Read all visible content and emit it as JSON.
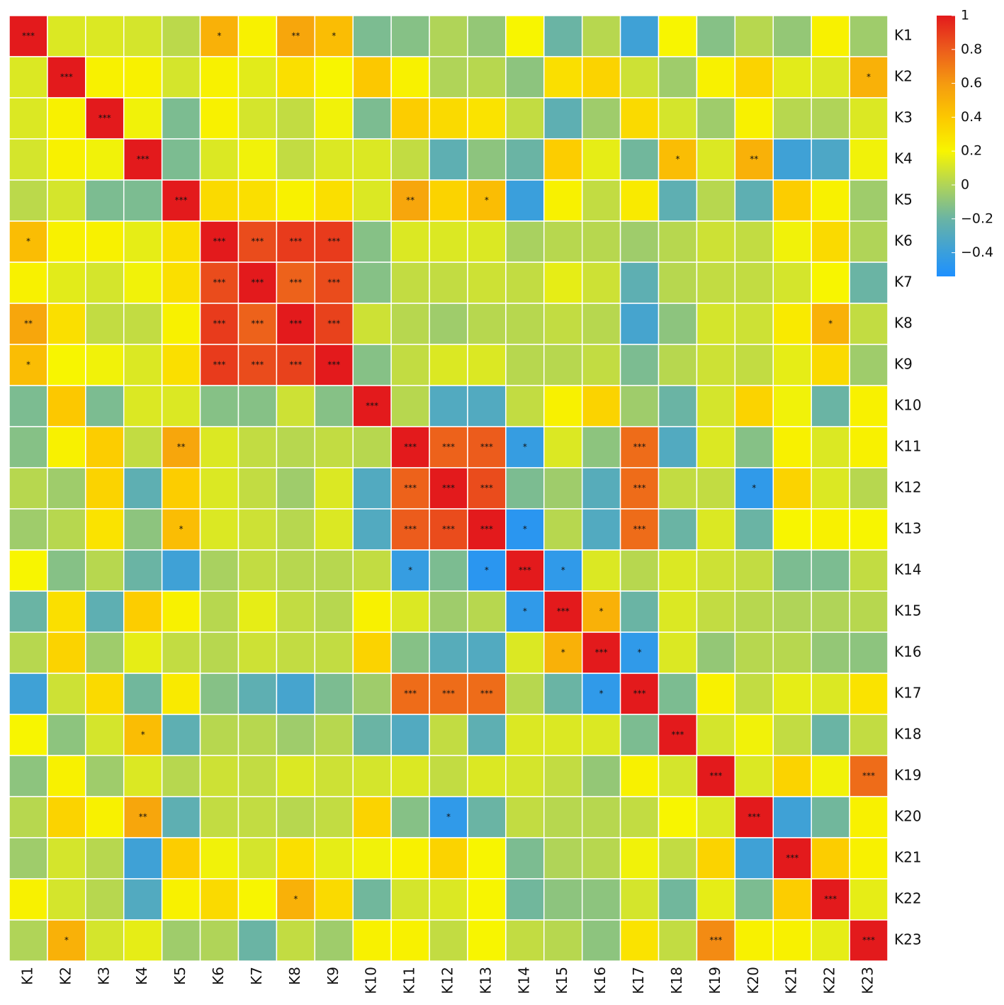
{
  "chart_data": {
    "type": "heatmap",
    "categories": [
      "K1",
      "K2",
      "K3",
      "K4",
      "K5",
      "K6",
      "K7",
      "K8",
      "K9",
      "K10",
      "K11",
      "K12",
      "K13",
      "K14",
      "K15",
      "K16",
      "K17",
      "K18",
      "K19",
      "K20",
      "K21",
      "K22",
      "K23"
    ],
    "values": [
      [
        1,
        0.12,
        0.12,
        0.1,
        0.03,
        0.5,
        0.22,
        0.55,
        0.45,
        -0.15,
        -0.12,
        0,
        -0.08,
        0.2,
        -0.2,
        0.02,
        -0.38,
        0.2,
        -0.12,
        0.02,
        -0.08,
        0.22,
        -0.05
      ],
      [
        0.12,
        1,
        0.22,
        0.22,
        0.1,
        0.22,
        0.14,
        0.3,
        0.2,
        0.4,
        0.22,
        0,
        0.02,
        -0.1,
        0.3,
        0.35,
        0.08,
        -0.05,
        0.22,
        0.35,
        0.14,
        0.12,
        0.5
      ],
      [
        0.12,
        0.22,
        1,
        0.18,
        -0.15,
        0.22,
        0.1,
        0.05,
        0.18,
        -0.15,
        0.38,
        0.32,
        0.28,
        0.05,
        -0.25,
        -0.05,
        0.32,
        0.1,
        -0.05,
        0.22,
        0.02,
        0,
        0.12
      ],
      [
        0.1,
        0.22,
        0.18,
        1,
        -0.15,
        0.12,
        0.18,
        0.05,
        0.12,
        0.12,
        0.05,
        -0.25,
        -0.1,
        -0.2,
        0.38,
        0.15,
        -0.18,
        0.45,
        0.12,
        0.5,
        -0.38,
        -0.32,
        0.18
      ],
      [
        0.03,
        0.1,
        -0.15,
        -0.15,
        1,
        0.32,
        0.3,
        0.22,
        0.3,
        0.12,
        0.55,
        0.35,
        0.45,
        -0.4,
        0.22,
        0.05,
        0.25,
        -0.25,
        0.02,
        -0.25,
        0.38,
        0.22,
        -0.05
      ],
      [
        0.45,
        0.22,
        0.22,
        0.15,
        0.3,
        1,
        0.85,
        0.9,
        0.9,
        -0.12,
        0.12,
        0.12,
        0.12,
        -0.02,
        0.02,
        0.02,
        -0.05,
        0.02,
        0.08,
        0.05,
        0.18,
        0.32,
        0
      ],
      [
        0.22,
        0.14,
        0.1,
        0.18,
        0.3,
        0.85,
        1,
        0.78,
        0.85,
        -0.12,
        0.05,
        0.05,
        0.08,
        0.05,
        0.15,
        0.08,
        -0.25,
        0.02,
        0.05,
        0.05,
        0.1,
        0.2,
        -0.2
      ],
      [
        0.55,
        0.3,
        0.05,
        0.05,
        0.22,
        0.9,
        0.78,
        1,
        0.88,
        0.08,
        0.02,
        -0.05,
        0.02,
        0.02,
        0.05,
        0.02,
        -0.35,
        -0.1,
        0.1,
        0.08,
        0.25,
        0.5,
        0.05
      ],
      [
        0.45,
        0.2,
        0.18,
        0.12,
        0.3,
        0.9,
        0.85,
        0.88,
        1,
        -0.12,
        0.05,
        0.12,
        0.12,
        0.02,
        0.02,
        0.05,
        -0.15,
        0.02,
        0.08,
        0.05,
        0.15,
        0.32,
        -0.05
      ],
      [
        -0.15,
        0.4,
        -0.15,
        0.12,
        0.12,
        -0.12,
        -0.12,
        0.08,
        -0.12,
        1,
        0.02,
        -0.3,
        -0.3,
        0.05,
        0.22,
        0.35,
        -0.05,
        -0.2,
        0.1,
        0.35,
        0.18,
        -0.2,
        0.22
      ],
      [
        -0.12,
        0.22,
        0.38,
        0.05,
        0.55,
        0.12,
        0.05,
        0.02,
        0.05,
        0.02,
        1,
        0.78,
        0.8,
        -0.42,
        0.12,
        -0.1,
        0.75,
        -0.3,
        0.12,
        -0.12,
        0.22,
        0.12,
        0.22
      ],
      [
        0.02,
        -0.05,
        0.35,
        -0.25,
        0.38,
        0.12,
        0.05,
        -0.05,
        0.12,
        -0.3,
        0.78,
        1,
        0.85,
        -0.15,
        -0.05,
        -0.28,
        0.75,
        0.05,
        0.05,
        -0.45,
        0.35,
        0.12,
        0.02
      ],
      [
        -0.05,
        0.02,
        0.28,
        -0.1,
        0.45,
        0.12,
        0.08,
        0.02,
        0.12,
        -0.3,
        0.8,
        0.85,
        1,
        -0.48,
        0.02,
        -0.3,
        0.75,
        -0.2,
        0.12,
        -0.2,
        0.2,
        0.22,
        0.2
      ],
      [
        0.2,
        -0.12,
        0.02,
        -0.2,
        -0.38,
        -0.02,
        0.05,
        0.02,
        0.02,
        0.05,
        -0.42,
        -0.15,
        -0.48,
        1,
        -0.45,
        0.12,
        0.02,
        0.12,
        0.08,
        0.05,
        -0.15,
        -0.15,
        0.05
      ],
      [
        -0.2,
        0.3,
        -0.25,
        0.38,
        0.22,
        0.02,
        0.15,
        0.05,
        0.02,
        0.22,
        0.12,
        -0.05,
        0.02,
        -0.45,
        1,
        0.5,
        -0.2,
        0.12,
        0.05,
        0.02,
        0,
        0,
        0.02
      ],
      [
        0.02,
        0.35,
        -0.05,
        0.15,
        0.05,
        0.02,
        0.08,
        0.05,
        0.05,
        0.35,
        -0.12,
        -0.28,
        -0.3,
        0.12,
        0.5,
        1,
        -0.45,
        0.12,
        -0.08,
        0.02,
        0.02,
        -0.08,
        -0.1
      ],
      [
        -0.38,
        0.08,
        0.32,
        -0.18,
        0.25,
        -0.12,
        -0.25,
        -0.35,
        -0.15,
        -0.05,
        0.75,
        0.75,
        0.75,
        0.02,
        -0.2,
        -0.45,
        1,
        -0.15,
        0.22,
        0.05,
        0.15,
        0.12,
        0.28
      ],
      [
        0.2,
        -0.1,
        0.1,
        0.45,
        -0.25,
        0.02,
        0.02,
        -0.05,
        0.02,
        -0.2,
        -0.3,
        0.05,
        -0.25,
        0.12,
        0.12,
        0.12,
        -0.15,
        1,
        0.1,
        0.18,
        0.05,
        -0.2,
        0.05
      ],
      [
        -0.1,
        0.22,
        -0.05,
        0.12,
        0.02,
        0.08,
        0.05,
        0.12,
        0.08,
        0.1,
        0.12,
        0.05,
        0.12,
        0.1,
        0.05,
        -0.08,
        0.22,
        0.1,
        1,
        0.12,
        0.35,
        0.18,
        0.75
      ],
      [
        0.02,
        0.35,
        0.22,
        0.55,
        -0.25,
        0.05,
        0.05,
        0.02,
        0.05,
        0.35,
        -0.12,
        -0.45,
        -0.2,
        0.05,
        0.02,
        0.02,
        0.05,
        0.2,
        0.12,
        1,
        -0.38,
        -0.18,
        0.22
      ],
      [
        -0.05,
        0.1,
        0.02,
        -0.38,
        0.38,
        0.18,
        0.1,
        0.3,
        0.15,
        0.18,
        0.22,
        0.35,
        0.2,
        -0.15,
        0,
        0.02,
        0.18,
        0.05,
        0.35,
        -0.38,
        1,
        0.38,
        0.22
      ],
      [
        0.22,
        0.1,
        0.02,
        -0.3,
        0.22,
        0.32,
        0.2,
        0.5,
        0.32,
        -0.18,
        0.1,
        0.12,
        0.2,
        -0.18,
        -0.1,
        -0.1,
        0.1,
        -0.18,
        0.15,
        -0.15,
        0.38,
        1,
        0.15
      ],
      [
        0,
        0.5,
        0.1,
        0.15,
        -0.05,
        0,
        -0.2,
        0.05,
        -0.05,
        0.22,
        0.22,
        0.05,
        0.2,
        0.05,
        0.02,
        -0.1,
        0.28,
        0.05,
        0.65,
        0.22,
        0.22,
        0.15,
        1
      ]
    ],
    "annotations": [
      [
        "***",
        null,
        null,
        null,
        null,
        "*",
        null,
        "**",
        "*",
        null,
        null,
        null,
        null,
        null,
        null,
        null,
        null,
        null,
        null,
        null,
        null,
        null,
        null
      ],
      [
        null,
        "***",
        null,
        null,
        null,
        null,
        null,
        null,
        null,
        null,
        null,
        null,
        null,
        null,
        null,
        null,
        null,
        null,
        null,
        null,
        null,
        null,
        "*"
      ],
      [
        null,
        null,
        "***",
        null,
        null,
        null,
        null,
        null,
        null,
        null,
        null,
        null,
        null,
        null,
        null,
        null,
        null,
        null,
        null,
        null,
        null,
        null,
        null
      ],
      [
        null,
        null,
        null,
        "***",
        null,
        null,
        null,
        null,
        null,
        null,
        null,
        null,
        null,
        null,
        null,
        null,
        null,
        "*",
        null,
        "**",
        null,
        null,
        null
      ],
      [
        null,
        null,
        null,
        null,
        "***",
        null,
        null,
        null,
        null,
        null,
        "**",
        null,
        "*",
        null,
        null,
        null,
        null,
        null,
        null,
        null,
        null,
        null,
        null
      ],
      [
        "*",
        null,
        null,
        null,
        null,
        "***",
        "***",
        "***",
        "***",
        null,
        null,
        null,
        null,
        null,
        null,
        null,
        null,
        null,
        null,
        null,
        null,
        null,
        null
      ],
      [
        null,
        null,
        null,
        null,
        null,
        "***",
        "***",
        "***",
        "***",
        null,
        null,
        null,
        null,
        null,
        null,
        null,
        null,
        null,
        null,
        null,
        null,
        null,
        null
      ],
      [
        "**",
        null,
        null,
        null,
        null,
        "***",
        "***",
        "***",
        "***",
        null,
        null,
        null,
        null,
        null,
        null,
        null,
        null,
        null,
        null,
        null,
        null,
        "*",
        null
      ],
      [
        "*",
        null,
        null,
        null,
        null,
        "***",
        "***",
        "***",
        "***",
        null,
        null,
        null,
        null,
        null,
        null,
        null,
        null,
        null,
        null,
        null,
        null,
        null,
        null
      ],
      [
        null,
        null,
        null,
        null,
        null,
        null,
        null,
        null,
        null,
        "***",
        null,
        null,
        null,
        null,
        null,
        null,
        null,
        null,
        null,
        null,
        null,
        null,
        null
      ],
      [
        null,
        null,
        null,
        null,
        "**",
        null,
        null,
        null,
        null,
        null,
        "***",
        "***",
        "***",
        "*",
        null,
        null,
        "***",
        null,
        null,
        null,
        null,
        null,
        null
      ],
      [
        null,
        null,
        null,
        null,
        null,
        null,
        null,
        null,
        null,
        null,
        "***",
        "***",
        "***",
        null,
        null,
        null,
        "***",
        null,
        null,
        "*",
        null,
        null,
        null
      ],
      [
        null,
        null,
        null,
        null,
        "*",
        null,
        null,
        null,
        null,
        null,
        "***",
        "***",
        "***",
        "*",
        null,
        null,
        "***",
        null,
        null,
        null,
        null,
        null,
        null
      ],
      [
        null,
        null,
        null,
        null,
        null,
        null,
        null,
        null,
        null,
        null,
        "*",
        null,
        "*",
        "***",
        "*",
        null,
        null,
        null,
        null,
        null,
        null,
        null,
        null
      ],
      [
        null,
        null,
        null,
        null,
        null,
        null,
        null,
        null,
        null,
        null,
        null,
        null,
        null,
        "*",
        "***",
        "*",
        null,
        null,
        null,
        null,
        null,
        null,
        null
      ],
      [
        null,
        null,
        null,
        null,
        null,
        null,
        null,
        null,
        null,
        null,
        null,
        null,
        null,
        null,
        "*",
        "***",
        "*",
        null,
        null,
        null,
        null,
        null,
        null
      ],
      [
        null,
        null,
        null,
        null,
        null,
        null,
        null,
        null,
        null,
        null,
        "***",
        "***",
        "***",
        null,
        null,
        "*",
        "***",
        null,
        null,
        null,
        null,
        null,
        null
      ],
      [
        null,
        null,
        null,
        "*",
        null,
        null,
        null,
        null,
        null,
        null,
        null,
        null,
        null,
        null,
        null,
        null,
        null,
        "***",
        null,
        null,
        null,
        null,
        null
      ],
      [
        null,
        null,
        null,
        null,
        null,
        null,
        null,
        null,
        null,
        null,
        null,
        null,
        null,
        null,
        null,
        null,
        null,
        null,
        "***",
        null,
        null,
        null,
        "***"
      ],
      [
        null,
        null,
        null,
        "**",
        null,
        null,
        null,
        null,
        null,
        null,
        null,
        "*",
        null,
        null,
        null,
        null,
        null,
        null,
        null,
        "***",
        null,
        null,
        null
      ],
      [
        null,
        null,
        null,
        null,
        null,
        null,
        null,
        null,
        null,
        null,
        null,
        null,
        null,
        null,
        null,
        null,
        null,
        null,
        null,
        null,
        "***",
        null,
        null
      ],
      [
        null,
        null,
        null,
        null,
        null,
        null,
        null,
        "*",
        null,
        null,
        null,
        null,
        null,
        null,
        null,
        null,
        null,
        null,
        null,
        null,
        null,
        "***",
        null
      ],
      [
        null,
        "*",
        null,
        null,
        null,
        null,
        null,
        null,
        null,
        null,
        null,
        null,
        null,
        null,
        null,
        null,
        null,
        null,
        "***",
        null,
        null,
        null,
        "***"
      ]
    ],
    "clim": [
      -0.54,
      1
    ],
    "cticks": [
      1,
      0.8,
      0.6,
      0.4,
      0.2,
      0,
      {
        "value": -0.2,
        "label": "−0.2"
      },
      {
        "value": -0.4,
        "label": "−0.4"
      }
    ],
    "colorscale": [
      [
        -0.54,
        "#1e90ff"
      ],
      [
        -0.4,
        "#3a9fdc"
      ],
      [
        -0.2,
        "#6ab4a4"
      ],
      [
        0,
        "#b0d458"
      ],
      [
        0.2,
        "#f8f500"
      ],
      [
        0.4,
        "#fcc800"
      ],
      [
        0.6,
        "#f59a10"
      ],
      [
        0.8,
        "#ec5c1c"
      ],
      [
        1,
        "#e31a1c"
      ]
    ]
  }
}
